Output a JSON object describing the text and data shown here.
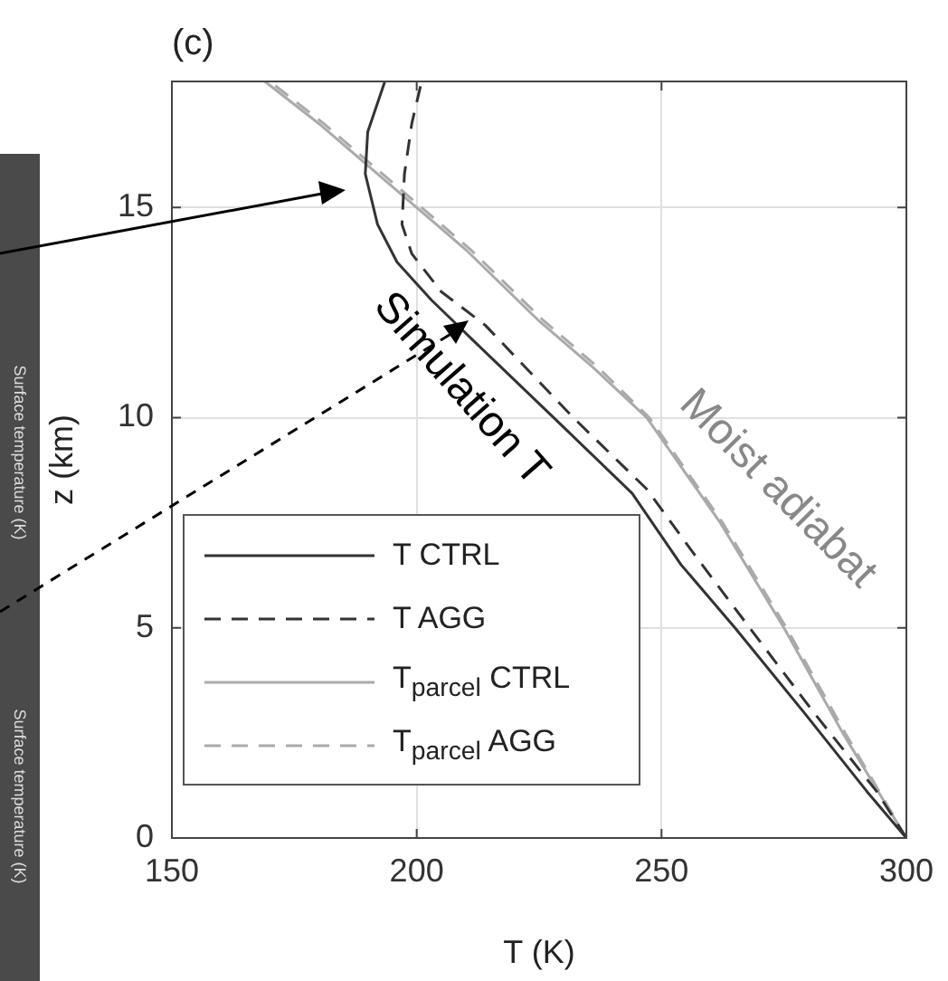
{
  "chart_data": {
    "type": "line",
    "title": "(c)",
    "xlabel": "T (K)",
    "ylabel": "z (km)",
    "xlim": [
      150,
      300
    ],
    "xticks": [
      150,
      200,
      250,
      300
    ],
    "ylim": [
      0,
      18
    ],
    "yticks": [
      0,
      5,
      10,
      15
    ],
    "grid": true,
    "legend": "bottom left",
    "series": [
      {
        "name": "T CTRL",
        "color": "#333333",
        "line_style": "solid",
        "x": [
          300,
          292,
          279,
          265,
          254,
          244,
          228,
          211,
          203,
          196,
          192,
          189.5,
          190,
          193.5
        ],
        "values": [
          0,
          1.1,
          3,
          5,
          6.5,
          8.2,
          10,
          11.9,
          12.8,
          13.7,
          14.6,
          15.8,
          16.8,
          18
        ]
      },
      {
        "name": "T AGG",
        "color": "#333333",
        "line_style": "dashed",
        "x": [
          300,
          294,
          281,
          268,
          257,
          247,
          232,
          214,
          205,
          199,
          197,
          197.5,
          199,
          201
        ],
        "values": [
          0,
          1.1,
          3,
          5,
          6.7,
          8.3,
          10,
          12.2,
          13,
          13.9,
          14.6,
          15.8,
          17,
          18
        ]
      },
      {
        "name": "T$_{parcel}$ CTRL",
        "color": "#aaaaaa",
        "line_style": "solid",
        "x": [
          300,
          287,
          275,
          262,
          247,
          236,
          225,
          210,
          200,
          190,
          180,
          169
        ],
        "values": [
          0,
          2.5,
          5,
          7.5,
          10,
          11.2,
          12.3,
          14,
          15,
          16,
          17,
          18
        ]
      },
      {
        "name": "T$_{parcel}$ AGG",
        "color": "#aaaaaa",
        "line_style": "dashed",
        "x": [
          300,
          287.5,
          275.5,
          262.5,
          247.5,
          237,
          226,
          211,
          201,
          191,
          181,
          170
        ],
        "values": [
          0,
          2.5,
          5,
          7.5,
          10,
          11.2,
          12.3,
          14,
          15,
          16,
          17,
          18
        ]
      }
    ],
    "annotations": [
      "Surface temperature (K)",
      "Surface temperature (K)",
      "Simulation T",
      "Moist adiabat"
    ]
  }
}
